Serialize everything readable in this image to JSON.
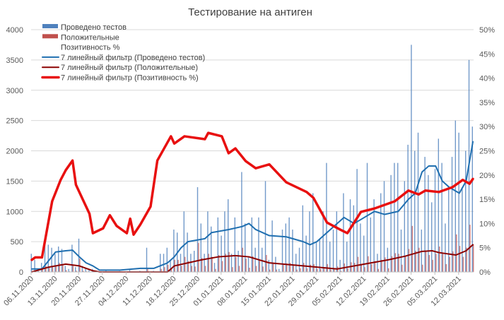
{
  "chart_data": {
    "type": "bar+line",
    "title": "Тестирование на антиген",
    "start_date": "06.11.2020",
    "days": 131,
    "y_left": {
      "min": 0,
      "max": 4000,
      "step": 500,
      "ticks": [
        "0",
        "500",
        "1000",
        "1500",
        "2000",
        "2500",
        "3000",
        "3500",
        "4000"
      ]
    },
    "y_right": {
      "min": 0,
      "max": 50,
      "step": 5,
      "ticks": [
        "0%",
        "5%",
        "10%",
        "15%",
        "20%",
        "25%",
        "30%",
        "35%",
        "40%",
        "45%",
        "50%"
      ]
    },
    "x_tick_labels": [
      "06.11.2020",
      "13.11.2020",
      "20.11.2020",
      "27.11.2020",
      "04.12.2020",
      "11.12.2020",
      "18.12.2020",
      "25.12.2020",
      "01.01.2021",
      "08.01.2021",
      "15.01.2021",
      "22.01.2021",
      "29.01.2021",
      "05.02.2021",
      "12.02.2021",
      "19.02.2021",
      "26.02.2021",
      "05.03.2021",
      "12.03.2021"
    ],
    "x_tick_step_days": 7,
    "grid": true,
    "legend_position": "top-left",
    "legend": [
      {
        "label": "Проведено тестов",
        "type": "bar",
        "color": "#4f81bd"
      },
      {
        "label": "Положительные",
        "type": "bar",
        "color": "#c0504d"
      },
      {
        "label": "Позитивность %",
        "type": "none",
        "color": "#ffffff"
      },
      {
        "label": "7 линейный фильтр (Проведено тестов)",
        "type": "line",
        "color": "#1f6fb0"
      },
      {
        "label": "7 линейный фильтр (Положительные)",
        "type": "line",
        "color": "#8b0000"
      },
      {
        "label": "7 линейный фильтр (Позитивность %)",
        "type": "line-thick",
        "color": "#e81010"
      }
    ],
    "series": {
      "tests_daily": [
        300,
        200,
        50,
        150,
        480,
        450,
        400,
        300,
        420,
        380,
        100,
        50,
        450,
        80,
        550,
        100,
        60,
        30,
        50,
        20,
        10,
        10,
        20,
        5,
        10,
        10,
        15,
        10,
        5,
        50,
        10,
        10,
        20,
        5,
        400,
        10,
        20,
        10,
        300,
        300,
        400,
        200,
        700,
        650,
        300,
        1000,
        650,
        300,
        350,
        1400,
        800,
        300,
        1000,
        750,
        150,
        900,
        600,
        1000,
        1200,
        300,
        900,
        350,
        1650,
        800,
        250,
        900,
        400,
        900,
        400,
        1500,
        200,
        850,
        250,
        50,
        700,
        800,
        900,
        700,
        300,
        400,
        1100,
        600,
        1000,
        1300,
        500,
        550,
        1000,
        1800,
        500,
        700,
        1000,
        200,
        1300,
        500,
        1200,
        1100,
        1700,
        800,
        600,
        1800,
        900,
        1200,
        300,
        1300,
        1500,
        400,
        1600,
        1800,
        1800,
        700,
        1500,
        2100,
        3750,
        2000,
        2300,
        700,
        1900,
        1600,
        1150,
        1700,
        2200,
        1800,
        800,
        1400,
        1900,
        2500,
        2300,
        1400,
        2000,
        3500,
        2400
      ],
      "positive_daily": [
        20,
        30,
        10,
        40,
        100,
        80,
        90,
        100,
        150,
        120,
        30,
        10,
        120,
        20,
        220,
        20,
        10,
        5,
        10,
        0,
        0,
        0,
        0,
        0,
        0,
        0,
        0,
        0,
        0,
        0,
        0,
        0,
        0,
        0,
        50,
        0,
        0,
        0,
        50,
        80,
        120,
        60,
        200,
        200,
        100,
        250,
        180,
        100,
        90,
        480,
        230,
        100,
        300,
        250,
        50,
        280,
        180,
        300,
        330,
        80,
        250,
        100,
        400,
        220,
        70,
        260,
        100,
        200,
        90,
        280,
        40,
        150,
        40,
        10,
        120,
        140,
        150,
        120,
        40,
        60,
        150,
        60,
        120,
        130,
        50,
        50,
        80,
        130,
        40,
        60,
        90,
        20,
        140,
        60,
        160,
        150,
        250,
        120,
        80,
        260,
        130,
        180,
        50,
        200,
        240,
        60,
        260,
        310,
        300,
        120,
        270,
        380,
        760,
        350,
        400,
        120,
        350,
        280,
        200,
        300,
        420,
        320,
        130,
        250,
        340,
        620,
        430,
        250,
        400,
        780,
        450
      ],
      "tests_ma7": [
        [
          0,
          50
        ],
        [
          3,
          50
        ],
        [
          7,
          330
        ],
        [
          10,
          350
        ],
        [
          12,
          360
        ],
        [
          14,
          250
        ],
        [
          16,
          150
        ],
        [
          18,
          100
        ],
        [
          20,
          30
        ],
        [
          26,
          30
        ],
        [
          32,
          60
        ],
        [
          36,
          60
        ],
        [
          40,
          150
        ],
        [
          42,
          250
        ],
        [
          44,
          400
        ],
        [
          46,
          500
        ],
        [
          51,
          550
        ],
        [
          53,
          650
        ],
        [
          58,
          700
        ],
        [
          62,
          750
        ],
        [
          64,
          800
        ],
        [
          66,
          700
        ],
        [
          70,
          600
        ],
        [
          75,
          580
        ],
        [
          80,
          500
        ],
        [
          82,
          450
        ],
        [
          84,
          500
        ],
        [
          86,
          600
        ],
        [
          90,
          800
        ],
        [
          92,
          900
        ],
        [
          95,
          800
        ],
        [
          98,
          900
        ],
        [
          101,
          1000
        ],
        [
          104,
          950
        ],
        [
          108,
          1000
        ],
        [
          111,
          1200
        ],
        [
          113,
          1300
        ],
        [
          115,
          1650
        ],
        [
          117,
          1750
        ],
        [
          119,
          1750
        ],
        [
          121,
          1500
        ],
        [
          123,
          1400
        ],
        [
          126,
          1300
        ],
        [
          128,
          1500
        ],
        [
          130,
          2150
        ]
      ],
      "positive_ma7": [
        [
          0,
          0
        ],
        [
          5,
          80
        ],
        [
          10,
          130
        ],
        [
          14,
          100
        ],
        [
          18,
          20
        ],
        [
          20,
          0
        ],
        [
          40,
          0
        ],
        [
          42,
          100
        ],
        [
          46,
          150
        ],
        [
          50,
          200
        ],
        [
          55,
          250
        ],
        [
          60,
          270
        ],
        [
          64,
          250
        ],
        [
          70,
          150
        ],
        [
          80,
          100
        ],
        [
          90,
          50
        ],
        [
          95,
          100
        ],
        [
          100,
          150
        ],
        [
          105,
          200
        ],
        [
          110,
          260
        ],
        [
          115,
          340
        ],
        [
          118,
          350
        ],
        [
          120,
          320
        ],
        [
          125,
          280
        ],
        [
          128,
          350
        ],
        [
          130,
          450
        ]
      ],
      "positivity_ma7_pct": [
        [
          0,
          2.5
        ],
        [
          1,
          3
        ],
        [
          3,
          3
        ],
        [
          6,
          14.6
        ],
        [
          8.5,
          19
        ],
        [
          10,
          21
        ],
        [
          12,
          23
        ],
        [
          13,
          18
        ],
        [
          15,
          15
        ],
        [
          17,
          12
        ],
        [
          18,
          8
        ],
        [
          21,
          9
        ],
        [
          23,
          11.7
        ],
        [
          25,
          9.5
        ],
        [
          28,
          8
        ],
        [
          29,
          11
        ],
        [
          30,
          7.7
        ],
        [
          32,
          9.8
        ],
        [
          35,
          13.5
        ],
        [
          37,
          23
        ],
        [
          39,
          25.5
        ],
        [
          41,
          28
        ],
        [
          42,
          26.5
        ],
        [
          45,
          28
        ],
        [
          51,
          27.4
        ],
        [
          52,
          28.7
        ],
        [
          56,
          28
        ],
        [
          58,
          24.5
        ],
        [
          60,
          25.5
        ],
        [
          63,
          22.9
        ],
        [
          66,
          21.4
        ],
        [
          70,
          22.2
        ],
        [
          75,
          18.5
        ],
        [
          81,
          16.5
        ],
        [
          83,
          15.3
        ],
        [
          87,
          10.2
        ],
        [
          91,
          8.7
        ],
        [
          93,
          8
        ],
        [
          97,
          12.4
        ],
        [
          101,
          13.1
        ],
        [
          107,
          14.6
        ],
        [
          111,
          16.8
        ],
        [
          114,
          16
        ],
        [
          116,
          16.8
        ],
        [
          120,
          16.5
        ],
        [
          124,
          17.5
        ],
        [
          127,
          19
        ],
        [
          129,
          18.2
        ],
        [
          130,
          19.2
        ]
      ]
    }
  }
}
